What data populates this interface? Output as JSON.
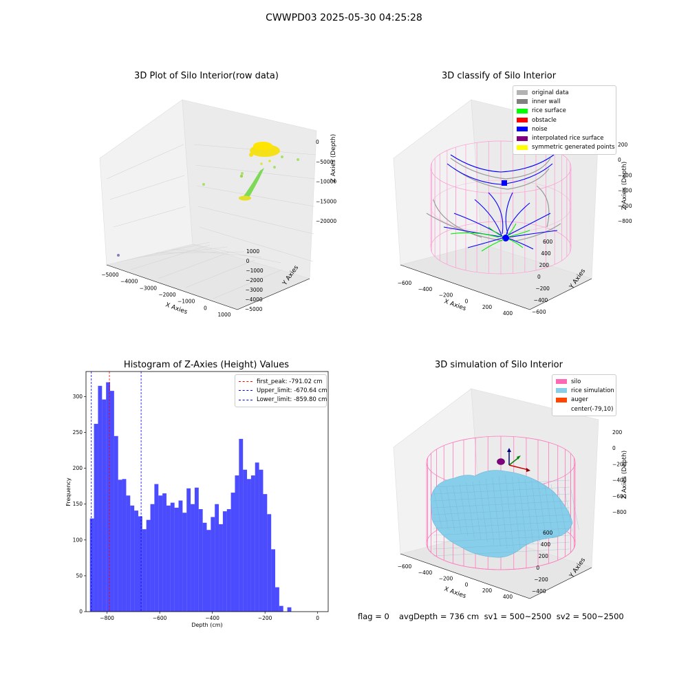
{
  "suptitle": "CWWPD03 2025-05-30 04:25:28",
  "panels": {
    "raw": {
      "title": "3D Plot of Silo Interior(row data)",
      "xlabel": "X Axies",
      "ylabel": "Y Axies",
      "zlabel": "Z Axies (Depth)",
      "x_ticks": [
        "−5000",
        "−4000",
        "−3000",
        "−2000",
        "−1000",
        "0",
        "1000"
      ],
      "y_ticks": [
        "1000",
        "0",
        "−1000",
        "−2000",
        "−3000",
        "−4000",
        "−5000"
      ],
      "z_ticks": [
        "0",
        "−5000",
        "−10000",
        "−15000",
        "−20000"
      ]
    },
    "classify": {
      "title": "3D classify of Silo Interior",
      "xlabel": "X Axies",
      "ylabel": "Y Axies",
      "zlabel": "Z Axies (Depth)",
      "x_ticks": [
        "−600",
        "−400",
        "−200",
        "0",
        "200",
        "400"
      ],
      "y_ticks": [
        "600",
        "400",
        "200",
        "0",
        "−200",
        "−400",
        "−600"
      ],
      "z_ticks": [
        "200",
        "0",
        "−200",
        "−400",
        "−600",
        "−800"
      ],
      "legend": [
        {
          "label": "original data",
          "color": "#b3b3b3"
        },
        {
          "label": "inner wall",
          "color": "#808080"
        },
        {
          "label": "rice surface",
          "color": "#00ff00"
        },
        {
          "label": "obstacle",
          "color": "#ff0000"
        },
        {
          "label": "noise",
          "color": "#0000ff"
        },
        {
          "label": "interpolated rice surface",
          "color": "#800080"
        },
        {
          "label": "symmetric generated points",
          "color": "#ffff00"
        }
      ]
    },
    "simulation": {
      "title": "3D simulation of Silo Interior",
      "xlabel": "X Axies",
      "ylabel": "Y Axies",
      "zlabel": "Z Axies (Depth)",
      "x_ticks": [
        "−600",
        "−400",
        "−200",
        "0",
        "200",
        "400"
      ],
      "y_ticks": [
        "600",
        "400",
        "200",
        "0",
        "−200",
        "−400"
      ],
      "z_ticks": [
        "200",
        "0",
        "−200",
        "−400",
        "−600",
        "−800"
      ],
      "legend": [
        {
          "label": "silo",
          "color": "#ff69b4"
        },
        {
          "label": "rice simulation",
          "color": "#87ceeb"
        },
        {
          "label": "auger",
          "color": "#ff4500"
        },
        {
          "label": "center(-79,10)",
          "color": "#ffffff"
        }
      ]
    }
  },
  "chart_data": {
    "type": "bar",
    "title": "Histogram of Z-Axies (Height) Values",
    "xlabel": "Depth (cm)",
    "ylabel": "Frequency",
    "xlim": [
      -880,
      40
    ],
    "ylim": [
      0,
      335
    ],
    "bin_start": -865,
    "bin_width": 15.3,
    "values": [
      130,
      262,
      315,
      296,
      320,
      308,
      245,
      184,
      185,
      162,
      148,
      141,
      133,
      115,
      128,
      150,
      178,
      162,
      165,
      148,
      152,
      145,
      155,
      138,
      172,
      150,
      173,
      143,
      124,
      114,
      132,
      150,
      122,
      140,
      143,
      166,
      190,
      241,
      198,
      185,
      190,
      208,
      198,
      164,
      136,
      87,
      34,
      8,
      0,
      6
    ],
    "bar_color": "#0000ff",
    "x_ticks": [
      -800,
      -600,
      -400,
      -200,
      0
    ],
    "y_ticks": [
      0,
      50,
      100,
      150,
      200,
      250,
      300
    ],
    "vlines": [
      {
        "label": "first_peak: -791.02 cm",
        "value": -791.02,
        "color": "#ff0000"
      },
      {
        "label": "Upper_limit: -670.64 cm",
        "value": -670.64,
        "color": "#0000ff"
      },
      {
        "label": "Lower_limit: -859.80 cm",
        "value": -859.8,
        "color": "#0000ff"
      }
    ]
  },
  "footer": {
    "flag": "flag = 0",
    "stats": "avgDepth = 736 cm  sv1 = 500~2500  sv2 = 500~2500"
  }
}
